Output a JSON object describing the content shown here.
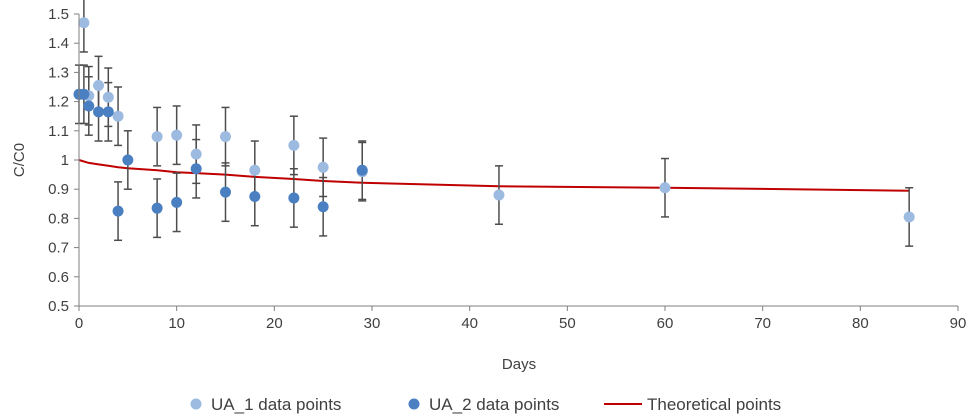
{
  "chart_data": {
    "type": "scatter",
    "xlabel": "Days",
    "ylabel": "C/C0",
    "xlim": [
      0,
      90
    ],
    "ylim": [
      0.5,
      1.5
    ],
    "x_ticks": [
      "0",
      "10",
      "20",
      "30",
      "40",
      "50",
      "60",
      "70",
      "80",
      "90"
    ],
    "y_ticks": [
      "0.5",
      "0.6",
      "0.7",
      "0.8",
      "0.9",
      "1",
      "1.1",
      "1.2",
      "1.3",
      "1.4",
      "1.5"
    ],
    "grid": false,
    "legend_position": "bottom",
    "series": [
      {
        "name": "UA_1 data points",
        "type": "scatter",
        "color": "#9dbbe0",
        "error_bar": 0.1,
        "points": [
          {
            "x": 0.5,
            "y": 1.47
          },
          {
            "x": 1,
            "y": 1.22
          },
          {
            "x": 2,
            "y": 1.255
          },
          {
            "x": 3,
            "y": 1.215
          },
          {
            "x": 4,
            "y": 1.15
          },
          {
            "x": 8,
            "y": 1.08
          },
          {
            "x": 10,
            "y": 1.085
          },
          {
            "x": 12,
            "y": 1.02
          },
          {
            "x": 15,
            "y": 1.08
          },
          {
            "x": 18,
            "y": 0.965
          },
          {
            "x": 22,
            "y": 1.05
          },
          {
            "x": 25,
            "y": 0.975
          },
          {
            "x": 29,
            "y": 0.96
          },
          {
            "x": 43,
            "y": 0.88
          },
          {
            "x": 60,
            "y": 0.905
          },
          {
            "x": 85,
            "y": 0.805
          }
        ]
      },
      {
        "name": "UA_2 data points",
        "type": "scatter",
        "color": "#4a7fc1",
        "error_bar": 0.1,
        "points": [
          {
            "x": 0,
            "y": 1.225
          },
          {
            "x": 0.5,
            "y": 1.225
          },
          {
            "x": 1,
            "y": 1.185
          },
          {
            "x": 2,
            "y": 1.165
          },
          {
            "x": 3,
            "y": 1.165
          },
          {
            "x": 4,
            "y": 0.825
          },
          {
            "x": 5,
            "y": 1.0
          },
          {
            "x": 8,
            "y": 0.835
          },
          {
            "x": 10,
            "y": 0.855
          },
          {
            "x": 12,
            "y": 0.97
          },
          {
            "x": 15,
            "y": 0.89
          },
          {
            "x": 18,
            "y": 0.875
          },
          {
            "x": 22,
            "y": 0.87
          },
          {
            "x": 25,
            "y": 0.84
          },
          {
            "x": 29,
            "y": 0.965
          }
        ]
      },
      {
        "name": "Theoretical points",
        "type": "line",
        "color": "#c00000",
        "points": [
          {
            "x": 0,
            "y": 1.0
          },
          {
            "x": 1,
            "y": 0.99
          },
          {
            "x": 2,
            "y": 0.985
          },
          {
            "x": 3,
            "y": 0.98
          },
          {
            "x": 4,
            "y": 0.975
          },
          {
            "x": 5,
            "y": 0.972
          },
          {
            "x": 8,
            "y": 0.965
          },
          {
            "x": 10,
            "y": 0.958
          },
          {
            "x": 12,
            "y": 0.955
          },
          {
            "x": 15,
            "y": 0.95
          },
          {
            "x": 18,
            "y": 0.942
          },
          {
            "x": 22,
            "y": 0.935
          },
          {
            "x": 25,
            "y": 0.928
          },
          {
            "x": 29,
            "y": 0.922
          },
          {
            "x": 43,
            "y": 0.91
          },
          {
            "x": 60,
            "y": 0.905
          },
          {
            "x": 85,
            "y": 0.895
          }
        ]
      }
    ]
  },
  "colors": {
    "axis": "#7f7f7f",
    "error_bar": "#4d4d4d",
    "text": "#404040"
  }
}
